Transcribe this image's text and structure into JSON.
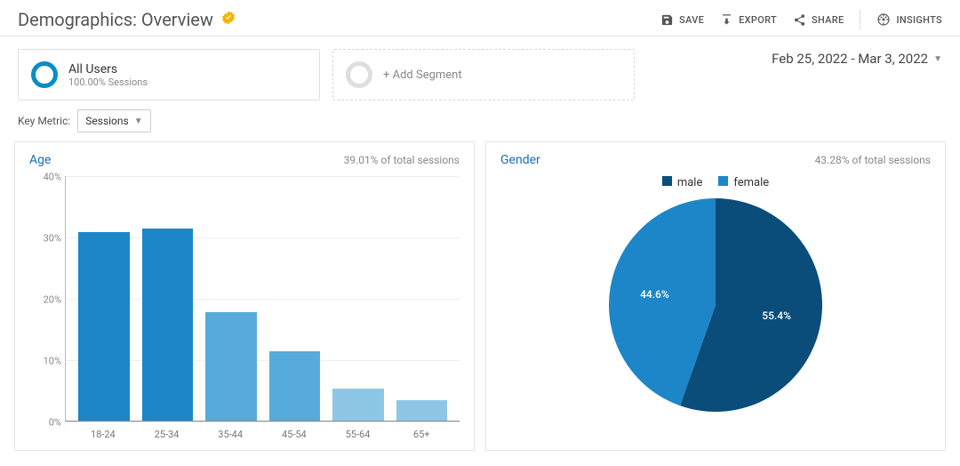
{
  "header": {
    "title": "Demographics: Overview",
    "verified_icon_color": "#f4b400",
    "actions": {
      "save": "SAVE",
      "export": "EXPORT",
      "share": "SHARE",
      "insights": "INSIGHTS"
    }
  },
  "segments": {
    "primary": {
      "name": "All Users",
      "subtitle": "100.00% Sessions",
      "ring_color": "#058dc7"
    },
    "add_label": "+ Add Segment"
  },
  "date_range": "Feb 25, 2022 - Mar 3, 2022",
  "key_metric": {
    "label": "Key Metric:",
    "value": "Sessions"
  },
  "age_chart": {
    "type": "bar",
    "title": "Age",
    "subtitle": "39.01% of total sessions",
    "categories": [
      "18-24",
      "25-34",
      "35-44",
      "45-54",
      "55-64",
      "65+"
    ],
    "values": [
      30.8,
      31.4,
      17.8,
      11.4,
      5.2,
      3.4
    ],
    "bar_colors": [
      "#1c86c8",
      "#1c86c8",
      "#57abdb",
      "#57abdb",
      "#8ec7e6",
      "#8ec7e6"
    ],
    "ylim_max": 40,
    "ytick_step": 10,
    "ylabel_suffix": "%",
    "grid_color": "#eeeeee",
    "axis_color": "#888888",
    "label_color": "#777777",
    "label_fontsize": 11
  },
  "gender_chart": {
    "type": "pie",
    "title": "Gender",
    "subtitle": "43.28% of total sessions",
    "legend": [
      {
        "label": "male",
        "color": "#0a4d7a"
      },
      {
        "label": "female",
        "color": "#1c86c8"
      }
    ],
    "slices": [
      {
        "label": "55.4%",
        "value": 55.4,
        "color": "#0a4d7a"
      },
      {
        "label": "44.6%",
        "value": 44.6,
        "color": "#1c86c8"
      }
    ],
    "label_color": "#ffffff",
    "label_fontsize": 12
  }
}
